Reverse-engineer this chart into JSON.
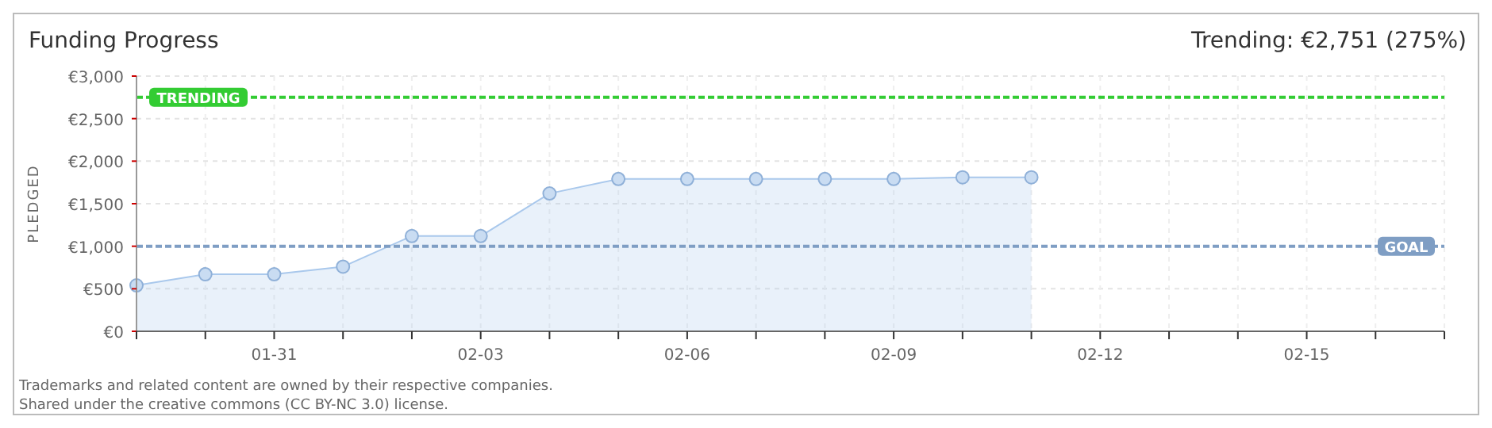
{
  "chart_data": {
    "type": "area",
    "title": "Funding Progress",
    "subtitle": "Trending: €2,751 (275%)",
    "ylabel": "PLEDGED",
    "x": [
      "--01-29",
      "--01-30",
      "--01-31",
      "--02-01",
      "--02-02",
      "--02-03",
      "--02-04",
      "--02-05",
      "--02-06",
      "--02-07",
      "--02-08",
      "--02-09",
      "--02-10",
      "--02-11"
    ],
    "series": [
      {
        "color": "#a9c8ec",
        "values": [
          540,
          670,
          670,
          760,
          1120,
          1120,
          1620,
          1790,
          1790,
          1790,
          1790,
          1790,
          1810,
          1810
        ]
      }
    ],
    "xlim": [
      "--01-29",
      "--02-17"
    ],
    "xticks": [
      {
        "value": "--01-29",
        "label": null
      },
      {
        "value": "--01-30",
        "label": null
      },
      {
        "value": "--01-31",
        "label": "01-31"
      },
      {
        "value": "--02-01",
        "label": null
      },
      {
        "value": "--02-02",
        "label": null
      },
      {
        "value": "--02-03",
        "label": "02-03"
      },
      {
        "value": "--02-04",
        "label": null
      },
      {
        "value": "--02-05",
        "label": null
      },
      {
        "value": "--02-06",
        "label": "02-06"
      },
      {
        "value": "--02-07",
        "label": null
      },
      {
        "value": "--02-08",
        "label": null
      },
      {
        "value": "--02-09",
        "label": "02-09"
      },
      {
        "value": "--02-10",
        "label": null
      },
      {
        "value": "--02-11",
        "label": null
      },
      {
        "value": "--02-12",
        "label": "02-12"
      },
      {
        "value": "--02-13",
        "label": null
      },
      {
        "value": "--02-14",
        "label": null
      },
      {
        "value": "--02-15",
        "label": "02-15"
      },
      {
        "value": "--02-16",
        "label": null
      },
      {
        "value": "--02-17",
        "label": null
      }
    ],
    "ylim": [
      0,
      3000
    ],
    "yticks": [
      {
        "value": 0,
        "label": "€0"
      },
      {
        "value": 500,
        "label": "€500"
      },
      {
        "value": 1000,
        "label": "€1,000"
      },
      {
        "value": 1500,
        "label": "€1,500"
      },
      {
        "value": 2000,
        "label": "€2,000"
      },
      {
        "value": 2500,
        "label": "€2,500"
      },
      {
        "value": 3000,
        "label": "€3,000"
      }
    ],
    "ref_lines": [
      {
        "axis": "y",
        "value": 2751,
        "label": "TRENDING",
        "color": "#33cc33",
        "line_style": "dashed"
      },
      {
        "axis": "y",
        "value": 1000,
        "label": "GOAL",
        "color": "#7f9ec4",
        "line_style": "dashed"
      }
    ],
    "grid": true,
    "marker": "circle",
    "annotations": [
      "Trademarks and related content are owned by their respective companies.",
      "Shared under the creative commons (CC BY-NC 3.0) license."
    ]
  }
}
